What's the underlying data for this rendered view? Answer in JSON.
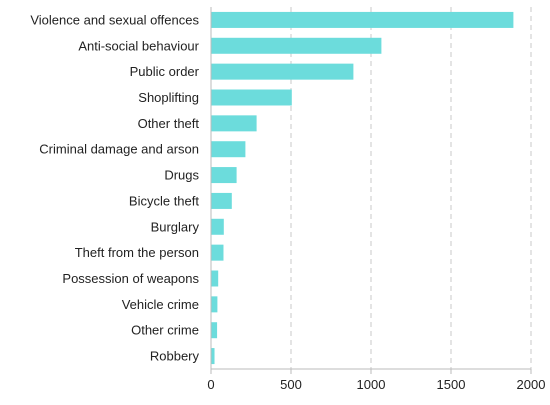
{
  "chart_data": {
    "type": "bar",
    "orientation": "horizontal",
    "categories": [
      "Violence and sexual offences",
      "Anti-social behaviour",
      "Public order",
      "Shoplifting",
      "Other theft",
      "Criminal damage and arson",
      "Drugs",
      "Bicycle theft",
      "Burglary",
      "Theft from the person",
      "Possession of weapons",
      "Vehicle crime",
      "Other crime",
      "Robbery"
    ],
    "values": [
      1890,
      1065,
      890,
      505,
      285,
      215,
      160,
      130,
      80,
      78,
      45,
      40,
      38,
      22
    ],
    "xlim": [
      0,
      2000
    ],
    "xticks": [
      0,
      500,
      1000,
      1500,
      2000
    ],
    "grid": "vertical dashed",
    "bar_color": "#6cdcdc",
    "grid_color": "#c8c8c8",
    "axis_color": "#bbbbbb"
  }
}
